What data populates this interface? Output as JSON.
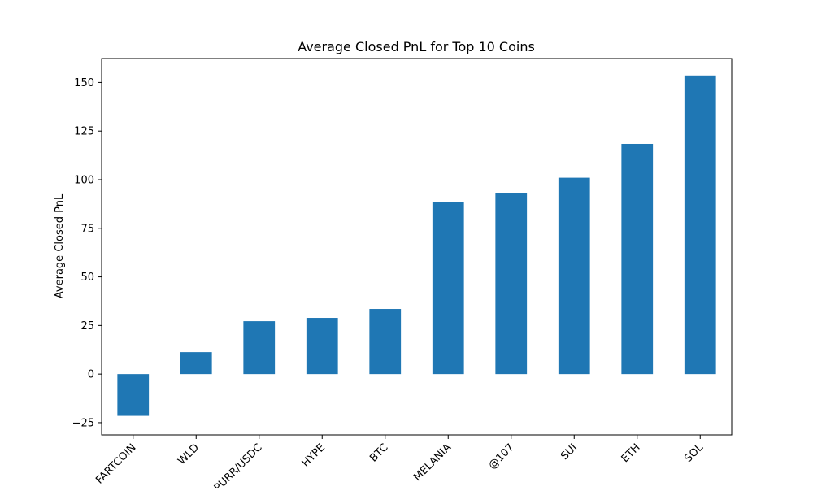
{
  "chart_data": {
    "type": "bar",
    "title": "Average Closed PnL for Top 10 Coins",
    "xlabel": "",
    "ylabel": "Average Closed PnL",
    "categories": [
      "FARTCOIN",
      "WLD",
      "PURR/USDC",
      "HYPE",
      "BTC",
      "MELANIA",
      "@107",
      "SUI",
      "ETH",
      "SOL"
    ],
    "values": [
      -21.5,
      11.3,
      27.2,
      28.9,
      33.5,
      88.6,
      93.1,
      101.0,
      118.4,
      153.6
    ],
    "yticks": [
      -25,
      0,
      25,
      50,
      75,
      100,
      125,
      150
    ],
    "ylim": [
      -31.3,
      162.3
    ],
    "grid": false,
    "legend": "none",
    "bar_color": "#1f77b4"
  }
}
